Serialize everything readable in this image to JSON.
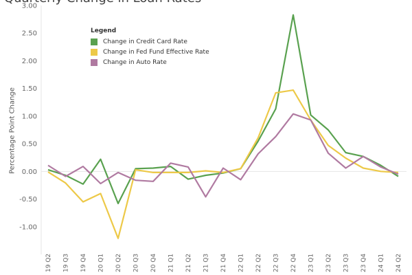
{
  "chart_data": {
    "type": "line",
    "title": "Quarterly Change in Loan Rates",
    "ylabel": "Percentage Point Change",
    "xlabel": "",
    "ylim": [
      -1.5,
      3.0
    ],
    "yticks": [
      "3.00",
      "2.50",
      "2.00",
      "1.50",
      "1.00",
      "0.50",
      "0.00",
      "-0.50",
      "-1.00"
    ],
    "yticks_values": [
      3.0,
      2.5,
      2.0,
      1.5,
      1.0,
      0.5,
      0.0,
      -0.5,
      -1.0
    ],
    "categories": [
      "19 Q2",
      "19 Q3",
      "19 Q4",
      "20 Q1",
      "20 Q2",
      "20 Q3",
      "20 Q4",
      "21 Q1",
      "21 Q2",
      "21 Q3",
      "21 Q4",
      "22 Q1",
      "22 Q2",
      "22 Q3",
      "22 Q4",
      "23 Q1",
      "23 Q2",
      "23 Q3",
      "23 Q4",
      "24 Q1",
      "24 Q2"
    ],
    "legend": {
      "title": "Legend",
      "position": "top-left"
    },
    "series": [
      {
        "name": "Change in Credit Card Rate",
        "color": "#59a14f",
        "values": [
          0.03,
          -0.07,
          -0.23,
          0.22,
          -0.58,
          0.05,
          0.06,
          0.09,
          -0.14,
          -0.07,
          -0.03,
          0.05,
          0.55,
          1.13,
          2.83,
          1.02,
          0.75,
          0.34,
          0.27,
          0.11,
          -0.09
        ]
      },
      {
        "name": "Change in Fed Fund Effective Rate",
        "color": "#edc948",
        "values": [
          -0.01,
          -0.21,
          -0.55,
          -0.4,
          -1.21,
          0.03,
          -0.02,
          -0.02,
          -0.02,
          0.01,
          -0.02,
          0.05,
          0.61,
          1.42,
          1.47,
          0.93,
          0.47,
          0.24,
          0.06,
          0.0,
          -0.02
        ]
      },
      {
        "name": "Change in Auto Rate",
        "color": "#b07aa1",
        "values": [
          0.11,
          -0.09,
          0.09,
          -0.22,
          -0.02,
          -0.16,
          -0.18,
          0.15,
          0.08,
          -0.46,
          0.06,
          -0.15,
          0.32,
          0.63,
          1.04,
          0.93,
          0.33,
          0.06,
          0.27,
          0.08,
          -0.05
        ]
      }
    ]
  }
}
